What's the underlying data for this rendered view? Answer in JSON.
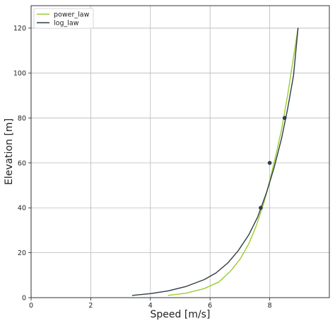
{
  "chart_data": {
    "type": "line",
    "xlabel": "Speed [m/s]",
    "ylabel": "Elevation [m]",
    "xlim": [
      0,
      10
    ],
    "ylim": [
      0,
      130
    ],
    "xticks": [
      0,
      2,
      4,
      6,
      8
    ],
    "yticks": [
      0,
      20,
      40,
      60,
      80,
      100,
      120
    ],
    "grid": true,
    "legend": "top-left",
    "series": [
      {
        "name": "power_law",
        "color": "#9acd32",
        "x": [
          4.6,
          5.2,
          5.8,
          6.3,
          6.7,
          7.0,
          7.3,
          7.55,
          7.8,
          8.0,
          8.2,
          8.4,
          8.6,
          8.75,
          8.95
        ],
        "y": [
          1,
          2,
          4,
          7,
          12,
          17,
          24,
          32,
          42,
          52,
          63,
          75,
          90,
          103,
          120
        ]
      },
      {
        "name": "log_law",
        "color": "#2f3d45",
        "x": [
          3.4,
          4.0,
          4.6,
          5.2,
          5.8,
          6.2,
          6.6,
          6.95,
          7.3,
          7.6,
          7.9,
          8.15,
          8.4,
          8.6,
          8.8,
          8.95
        ],
        "y": [
          1,
          1.8,
          3,
          5,
          8,
          11,
          15.5,
          21,
          28,
          36,
          47,
          58,
          71,
          84,
          99,
          120
        ]
      }
    ],
    "observations": {
      "x": [
        7.7,
        8.0,
        8.5
      ],
      "y": [
        40,
        60,
        80
      ],
      "color": "#2f3d45"
    }
  }
}
